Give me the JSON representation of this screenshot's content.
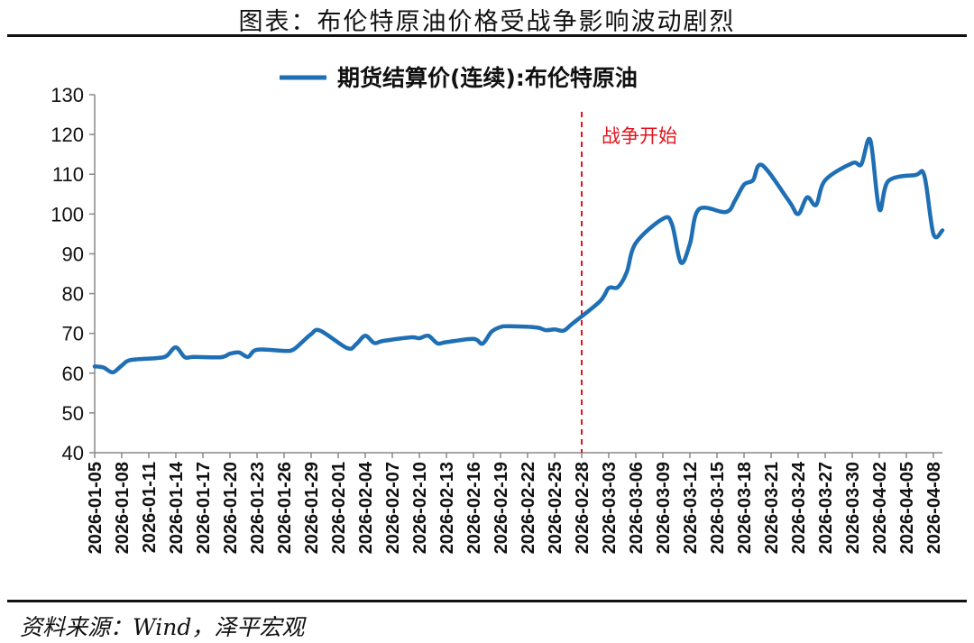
{
  "page": {
    "title": "图表：布伦特原油价格受战争影响波动剧烈",
    "source": "资料来源：Wind，泽平宏观"
  },
  "chart_data": {
    "type": "line",
    "title": "",
    "xlabel": "",
    "ylabel": "",
    "ylim": [
      40,
      130
    ],
    "yticks": [
      40,
      50,
      60,
      70,
      80,
      90,
      100,
      110,
      120,
      130
    ],
    "xticks": [
      "2026-01-05",
      "2026-01-08",
      "2026-01-11",
      "2026-01-14",
      "2026-01-17",
      "2026-01-20",
      "2026-01-23",
      "2026-01-26",
      "2026-01-29",
      "2026-02-01",
      "2026-02-04",
      "2026-02-07",
      "2026-02-10",
      "2026-02-13",
      "2026-02-16",
      "2026-02-19",
      "2026-02-22",
      "2026-02-25",
      "2026-02-28",
      "2026-03-03",
      "2026-03-06",
      "2026-03-09",
      "2026-03-12",
      "2026-03-15",
      "2026-03-18",
      "2026-03-21",
      "2026-03-24",
      "2026-03-27",
      "2026-03-30",
      "2026-04-02",
      "2026-04-05",
      "2026-04-08"
    ],
    "grid": false,
    "legend": "top-center",
    "series": [
      {
        "name": "期货结算价(连续):布伦特原油",
        "color": "#1f6fb5",
        "points": [
          [
            "2026-01-05",
            61.7
          ],
          [
            "2026-01-06",
            61.4
          ],
          [
            "2026-01-07",
            60.2
          ],
          [
            "2026-01-08",
            61.9
          ],
          [
            "2026-01-09",
            63.3
          ],
          [
            "2026-01-12",
            63.8
          ],
          [
            "2026-01-13",
            64.4
          ],
          [
            "2026-01-14",
            66.5
          ],
          [
            "2026-01-15",
            64.0
          ],
          [
            "2026-01-16",
            64.1
          ],
          [
            "2026-01-19",
            64.0
          ],
          [
            "2026-01-20",
            64.9
          ],
          [
            "2026-01-21",
            65.2
          ],
          [
            "2026-01-22",
            64.1
          ],
          [
            "2026-01-23",
            65.9
          ],
          [
            "2026-01-26",
            65.6
          ],
          [
            "2026-01-27",
            65.9
          ],
          [
            "2026-01-28",
            67.8
          ],
          [
            "2026-01-29",
            69.8
          ],
          [
            "2026-01-30",
            70.7
          ],
          [
            "2026-02-02",
            66.3
          ],
          [
            "2026-02-03",
            67.3
          ],
          [
            "2026-02-04",
            69.4
          ],
          [
            "2026-02-05",
            67.6
          ],
          [
            "2026-02-06",
            68.1
          ],
          [
            "2026-02-09",
            69.0
          ],
          [
            "2026-02-10",
            68.8
          ],
          [
            "2026-02-11",
            69.4
          ],
          [
            "2026-02-12",
            67.5
          ],
          [
            "2026-02-13",
            67.8
          ],
          [
            "2026-02-16",
            68.6
          ],
          [
            "2026-02-17",
            67.4
          ],
          [
            "2026-02-18",
            70.4
          ],
          [
            "2026-02-19",
            71.6
          ],
          [
            "2026-02-20",
            71.8
          ],
          [
            "2026-02-23",
            71.5
          ],
          [
            "2026-02-24",
            70.8
          ],
          [
            "2026-02-25",
            71.0
          ],
          [
            "2026-02-26",
            70.7
          ],
          [
            "2026-02-27",
            72.5
          ],
          [
            "2026-03-02",
            78.0
          ],
          [
            "2026-03-03",
            81.4
          ],
          [
            "2026-03-04",
            81.6
          ],
          [
            "2026-03-05",
            85.4
          ],
          [
            "2026-03-06",
            92.7
          ],
          [
            "2026-03-09",
            98.8
          ],
          [
            "2026-03-10",
            97.5
          ],
          [
            "2026-03-11",
            87.8
          ],
          [
            "2026-03-12",
            92.5
          ],
          [
            "2026-03-13",
            101.2
          ],
          [
            "2026-03-16",
            100.5
          ],
          [
            "2026-03-17",
            103.4
          ],
          [
            "2026-03-18",
            107.4
          ],
          [
            "2026-03-19",
            108.5
          ],
          [
            "2026-03-20",
            112.3
          ],
          [
            "2026-03-23",
            103.2
          ],
          [
            "2026-03-24",
            100.0
          ],
          [
            "2026-03-25",
            104.2
          ],
          [
            "2026-03-26",
            102.3
          ],
          [
            "2026-03-27",
            108.5
          ],
          [
            "2026-03-30",
            112.8
          ],
          [
            "2026-03-31",
            112.5
          ],
          [
            "2026-04-01",
            118.6
          ],
          [
            "2026-04-02",
            101.2
          ],
          [
            "2026-04-03",
            108.3
          ],
          [
            "2026-04-06",
            109.8
          ],
          [
            "2026-04-07",
            109.6
          ],
          [
            "2026-04-08",
            95.0
          ],
          [
            "2026-04-09",
            95.9
          ]
        ]
      }
    ],
    "annotations": [
      {
        "x": "2026-02-28",
        "label": "战争开始",
        "style": "dashed-vertical",
        "color": "#e0141e"
      }
    ]
  }
}
